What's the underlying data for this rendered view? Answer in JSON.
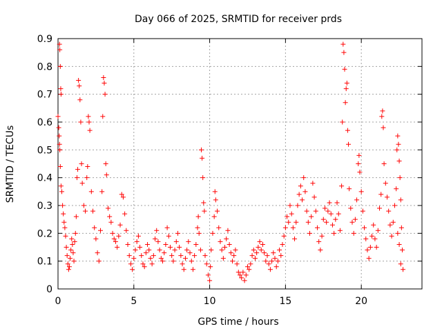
{
  "chart_data": {
    "type": "scatter",
    "title": "Day 066 of 2025, SRMTID for receiver prds",
    "xlabel": "GPS time / hours",
    "ylabel": "SRMTID / TECUs",
    "xlim": [
      0,
      24
    ],
    "ylim": [
      0,
      0.9
    ],
    "x_ticks": [
      0,
      5,
      10,
      15,
      20
    ],
    "x_tick_labels": [
      "0",
      "5",
      "10",
      "15",
      "20"
    ],
    "y_ticks": [
      0,
      0.1,
      0.2,
      0.3,
      0.4,
      0.5,
      0.6,
      0.7,
      0.8,
      0.9
    ],
    "y_tick_labels": [
      "0",
      "0.1",
      "0.2",
      "0.3",
      "0.4",
      "0.5",
      "0.6",
      "0.7",
      "0.8",
      "0.9"
    ],
    "grid": true,
    "marker": "+",
    "color": "#ff0000",
    "series": [
      {
        "name": "SRMTID",
        "points": [
          [
            0.0,
            0.62
          ],
          [
            0.05,
            0.58
          ],
          [
            0.08,
            0.55
          ],
          [
            0.1,
            0.88
          ],
          [
            0.12,
            0.86
          ],
          [
            0.15,
            0.8
          ],
          [
            0.18,
            0.72
          ],
          [
            0.2,
            0.7
          ],
          [
            0.1,
            0.52
          ],
          [
            0.12,
            0.5
          ],
          [
            0.15,
            0.44
          ],
          [
            0.2,
            0.37
          ],
          [
            0.25,
            0.35
          ],
          [
            0.3,
            0.3
          ],
          [
            0.35,
            0.27
          ],
          [
            0.4,
            0.24
          ],
          [
            0.45,
            0.22
          ],
          [
            0.5,
            0.19
          ],
          [
            0.55,
            0.15
          ],
          [
            0.6,
            0.12
          ],
          [
            0.65,
            0.09
          ],
          [
            0.7,
            0.07
          ],
          [
            0.75,
            0.08
          ],
          [
            0.8,
            0.11
          ],
          [
            0.85,
            0.14
          ],
          [
            0.9,
            0.18
          ],
          [
            0.95,
            0.16
          ],
          [
            1.0,
            0.13
          ],
          [
            1.05,
            0.1
          ],
          [
            1.1,
            0.17
          ],
          [
            1.15,
            0.2
          ],
          [
            1.2,
            0.26
          ],
          [
            1.25,
            0.4
          ],
          [
            1.3,
            0.43
          ],
          [
            1.35,
            0.75
          ],
          [
            1.4,
            0.73
          ],
          [
            1.45,
            0.68
          ],
          [
            1.5,
            0.6
          ],
          [
            1.55,
            0.45
          ],
          [
            1.6,
            0.38
          ],
          [
            1.7,
            0.3
          ],
          [
            1.8,
            0.28
          ],
          [
            1.9,
            0.4
          ],
          [
            1.95,
            0.44
          ],
          [
            2.0,
            0.62
          ],
          [
            2.05,
            0.6
          ],
          [
            2.1,
            0.57
          ],
          [
            2.2,
            0.35
          ],
          [
            2.3,
            0.28
          ],
          [
            2.4,
            0.22
          ],
          [
            2.5,
            0.18
          ],
          [
            2.6,
            0.13
          ],
          [
            2.7,
            0.1
          ],
          [
            2.8,
            0.21
          ],
          [
            2.9,
            0.35
          ],
          [
            2.95,
            0.62
          ],
          [
            3.0,
            0.76
          ],
          [
            3.05,
            0.74
          ],
          [
            3.1,
            0.7
          ],
          [
            3.15,
            0.45
          ],
          [
            3.2,
            0.41
          ],
          [
            3.3,
            0.29
          ],
          [
            3.4,
            0.26
          ],
          [
            3.5,
            0.24
          ],
          [
            3.6,
            0.2
          ],
          [
            3.7,
            0.18
          ],
          [
            3.8,
            0.17
          ],
          [
            3.9,
            0.15
          ],
          [
            4.0,
            0.19
          ],
          [
            4.1,
            0.23
          ],
          [
            4.2,
            0.34
          ],
          [
            4.3,
            0.33
          ],
          [
            4.4,
            0.27
          ],
          [
            4.5,
            0.21
          ],
          [
            4.6,
            0.16
          ],
          [
            4.7,
            0.12
          ],
          [
            4.8,
            0.09
          ],
          [
            4.9,
            0.07
          ],
          [
            5.0,
            0.11
          ],
          [
            5.1,
            0.14
          ],
          [
            5.2,
            0.17
          ],
          [
            5.3,
            0.19
          ],
          [
            5.4,
            0.15
          ],
          [
            5.5,
            0.12
          ],
          [
            5.6,
            0.09
          ],
          [
            5.7,
            0.08
          ],
          [
            5.8,
            0.13
          ],
          [
            5.9,
            0.16
          ],
          [
            6.0,
            0.14
          ],
          [
            6.1,
            0.11
          ],
          [
            6.2,
            0.09
          ],
          [
            6.3,
            0.12
          ],
          [
            6.4,
            0.18
          ],
          [
            6.5,
            0.21
          ],
          [
            6.6,
            0.17
          ],
          [
            6.7,
            0.14
          ],
          [
            6.8,
            0.11
          ],
          [
            6.9,
            0.1
          ],
          [
            7.0,
            0.13
          ],
          [
            7.1,
            0.16
          ],
          [
            7.2,
            0.22
          ],
          [
            7.3,
            0.19
          ],
          [
            7.4,
            0.15
          ],
          [
            7.5,
            0.12
          ],
          [
            7.6,
            0.1
          ],
          [
            7.7,
            0.14
          ],
          [
            7.8,
            0.17
          ],
          [
            7.9,
            0.2
          ],
          [
            8.0,
            0.15
          ],
          [
            8.1,
            0.12
          ],
          [
            8.2,
            0.09
          ],
          [
            8.3,
            0.07
          ],
          [
            8.4,
            0.11
          ],
          [
            8.5,
            0.14
          ],
          [
            8.6,
            0.17
          ],
          [
            8.7,
            0.13
          ],
          [
            8.8,
            0.1
          ],
          [
            8.9,
            0.07
          ],
          [
            9.0,
            0.12
          ],
          [
            9.1,
            0.16
          ],
          [
            9.2,
            0.22
          ],
          [
            9.25,
            0.26
          ],
          [
            9.3,
            0.2
          ],
          [
            9.4,
            0.14
          ],
          [
            9.45,
            0.5
          ],
          [
            9.5,
            0.47
          ],
          [
            9.55,
            0.4
          ],
          [
            9.6,
            0.31
          ],
          [
            9.65,
            0.28
          ],
          [
            9.7,
            0.12
          ],
          [
            9.8,
            0.09
          ],
          [
            9.9,
            0.05
          ],
          [
            10.0,
            0.03
          ],
          [
            10.05,
            0.08
          ],
          [
            10.1,
            0.14
          ],
          [
            10.2,
            0.2
          ],
          [
            10.3,
            0.26
          ],
          [
            10.35,
            0.35
          ],
          [
            10.4,
            0.32
          ],
          [
            10.5,
            0.28
          ],
          [
            10.6,
            0.22
          ],
          [
            10.7,
            0.17
          ],
          [
            10.8,
            0.14
          ],
          [
            10.9,
            0.11
          ],
          [
            11.0,
            0.15
          ],
          [
            11.1,
            0.18
          ],
          [
            11.2,
            0.21
          ],
          [
            11.3,
            0.16
          ],
          [
            11.4,
            0.13
          ],
          [
            11.5,
            0.1
          ],
          [
            11.6,
            0.12
          ],
          [
            11.7,
            0.14
          ],
          [
            11.8,
            0.09
          ],
          [
            11.9,
            0.06
          ],
          [
            12.0,
            0.05
          ],
          [
            12.1,
            0.04
          ],
          [
            12.2,
            0.06
          ],
          [
            12.3,
            0.03
          ],
          [
            12.4,
            0.05
          ],
          [
            12.5,
            0.08
          ],
          [
            12.6,
            0.07
          ],
          [
            12.7,
            0.09
          ],
          [
            12.8,
            0.12
          ],
          [
            12.9,
            0.14
          ],
          [
            13.0,
            0.11
          ],
          [
            13.1,
            0.13
          ],
          [
            13.2,
            0.15
          ],
          [
            13.3,
            0.17
          ],
          [
            13.4,
            0.14
          ],
          [
            13.5,
            0.16
          ],
          [
            13.6,
            0.13
          ],
          [
            13.7,
            0.1
          ],
          [
            13.8,
            0.12
          ],
          [
            13.9,
            0.09
          ],
          [
            14.0,
            0.07
          ],
          [
            14.1,
            0.1
          ],
          [
            14.2,
            0.13
          ],
          [
            14.3,
            0.11
          ],
          [
            14.4,
            0.08
          ],
          [
            14.5,
            0.1
          ],
          [
            14.6,
            0.14
          ],
          [
            14.7,
            0.12
          ],
          [
            14.8,
            0.16
          ],
          [
            14.9,
            0.19
          ],
          [
            15.0,
            0.22
          ],
          [
            15.1,
            0.26
          ],
          [
            15.2,
            0.24
          ],
          [
            15.3,
            0.3
          ],
          [
            15.4,
            0.27
          ],
          [
            15.5,
            0.22
          ],
          [
            15.6,
            0.18
          ],
          [
            15.7,
            0.24
          ],
          [
            15.8,
            0.3
          ],
          [
            15.9,
            0.34
          ],
          [
            16.0,
            0.37
          ],
          [
            16.1,
            0.32
          ],
          [
            16.2,
            0.4
          ],
          [
            16.3,
            0.35
          ],
          [
            16.4,
            0.28
          ],
          [
            16.5,
            0.24
          ],
          [
            16.6,
            0.2
          ],
          [
            16.7,
            0.26
          ],
          [
            16.8,
            0.38
          ],
          [
            16.9,
            0.33
          ],
          [
            17.0,
            0.28
          ],
          [
            17.1,
            0.22
          ],
          [
            17.2,
            0.17
          ],
          [
            17.3,
            0.14
          ],
          [
            17.4,
            0.19
          ],
          [
            17.5,
            0.25
          ],
          [
            17.6,
            0.29
          ],
          [
            17.7,
            0.24
          ],
          [
            17.8,
            0.28
          ],
          [
            17.9,
            0.31
          ],
          [
            18.0,
            0.27
          ],
          [
            18.1,
            0.23
          ],
          [
            18.2,
            0.2
          ],
          [
            18.3,
            0.25
          ],
          [
            18.4,
            0.31
          ],
          [
            18.5,
            0.27
          ],
          [
            18.6,
            0.21
          ],
          [
            18.7,
            0.37
          ],
          [
            18.75,
            0.6
          ],
          [
            18.8,
            0.88
          ],
          [
            18.85,
            0.85
          ],
          [
            18.9,
            0.79
          ],
          [
            18.95,
            0.67
          ],
          [
            19.0,
            0.72
          ],
          [
            19.05,
            0.74
          ],
          [
            19.1,
            0.57
          ],
          [
            19.15,
            0.52
          ],
          [
            19.2,
            0.36
          ],
          [
            19.3,
            0.29
          ],
          [
            19.4,
            0.24
          ],
          [
            19.5,
            0.2
          ],
          [
            19.6,
            0.25
          ],
          [
            19.7,
            0.32
          ],
          [
            19.8,
            0.45
          ],
          [
            19.85,
            0.48
          ],
          [
            19.9,
            0.42
          ],
          [
            20.0,
            0.35
          ],
          [
            20.1,
            0.28
          ],
          [
            20.2,
            0.22
          ],
          [
            20.3,
            0.18
          ],
          [
            20.4,
            0.14
          ],
          [
            20.5,
            0.11
          ],
          [
            20.6,
            0.15
          ],
          [
            20.7,
            0.19
          ],
          [
            20.8,
            0.23
          ],
          [
            20.9,
            0.18
          ],
          [
            21.0,
            0.15
          ],
          [
            21.1,
            0.21
          ],
          [
            21.2,
            0.29
          ],
          [
            21.3,
            0.34
          ],
          [
            21.35,
            0.62
          ],
          [
            21.4,
            0.64
          ],
          [
            21.45,
            0.58
          ],
          [
            21.5,
            0.45
          ],
          [
            21.6,
            0.38
          ],
          [
            21.7,
            0.33
          ],
          [
            21.8,
            0.28
          ],
          [
            21.9,
            0.23
          ],
          [
            22.0,
            0.19
          ],
          [
            22.1,
            0.24
          ],
          [
            22.2,
            0.3
          ],
          [
            22.3,
            0.36
          ],
          [
            22.35,
            0.5
          ],
          [
            22.4,
            0.55
          ],
          [
            22.45,
            0.52
          ],
          [
            22.5,
            0.46
          ],
          [
            22.55,
            0.4
          ],
          [
            22.6,
            0.32
          ],
          [
            22.65,
            0.22
          ],
          [
            22.7,
            0.14
          ],
          [
            22.75,
            0.07
          ],
          [
            22.6,
            0.09
          ],
          [
            22.5,
            0.16
          ],
          [
            22.4,
            0.2
          ]
        ]
      }
    ]
  }
}
